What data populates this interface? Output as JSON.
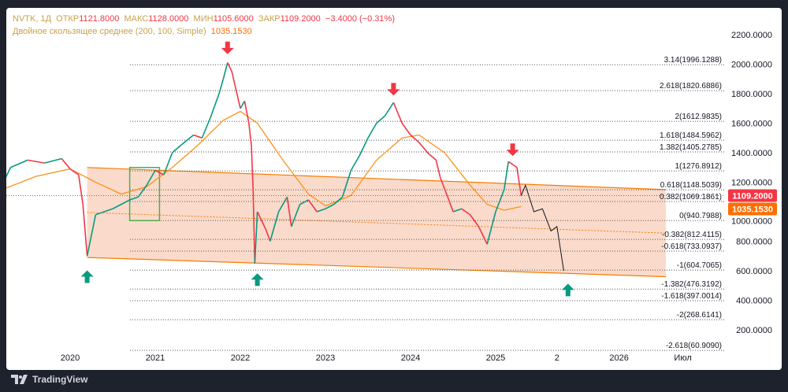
{
  "header": {
    "symbol": "NVTK, 1Д",
    "open_label": "ОТКР",
    "open": "1121.8000",
    "high_label": "МАКС",
    "high": "1128.0000",
    "low_label": "МИН",
    "low": "1105.6000",
    "close_label": "ЗАКР",
    "close": "1109.2000",
    "change": "−3.4000 (−0.31%)",
    "indicator": "Двойное скользящее среднее (200, 100, Simple)",
    "indicator_value": "1035.1530"
  },
  "brand": "TradingView",
  "colors": {
    "up": "#089981",
    "down": "#f23645",
    "ma": "#f7931a",
    "channel": "#f8cdb8",
    "box": "#4caf50"
  },
  "chart_data": {
    "type": "line",
    "ylim": [
      200,
      2200
    ],
    "yticks": [
      "2200.0000",
      "2000.0000",
      "1800.0000",
      "1600.0000",
      "1400.0000",
      "1200.0000",
      "1000.0000",
      "800.0000",
      "600.0000",
      "400.0000",
      "200.0000"
    ],
    "ytick_values": [
      2200,
      2000,
      1800,
      1600,
      1400,
      1200,
      1000,
      800,
      600,
      400,
      200
    ],
    "xticks": [
      {
        "label": "2020",
        "t": 2020
      },
      {
        "label": "2021",
        "t": 2021
      },
      {
        "label": "2022",
        "t": 2022
      },
      {
        "label": "2023",
        "t": 2023
      },
      {
        "label": "2024",
        "t": 2024
      },
      {
        "label": "2025",
        "t": 2025
      },
      {
        "label": "2",
        "t": 2025.72
      },
      {
        "label": "2026",
        "t": 2026.45
      },
      {
        "label": "Июл",
        "t": 2027.2
      }
    ],
    "price_series": [
      [
        2019.2,
        1180
      ],
      [
        2019.3,
        1300
      ],
      [
        2019.5,
        1350
      ],
      [
        2019.7,
        1330
      ],
      [
        2019.9,
        1360
      ],
      [
        2020.0,
        1290
      ],
      [
        2020.1,
        1250
      ],
      [
        2020.15,
        1050
      ],
      [
        2020.2,
        700
      ],
      [
        2020.3,
        980
      ],
      [
        2020.5,
        1020
      ],
      [
        2020.7,
        1080
      ],
      [
        2020.8,
        1100
      ],
      [
        2020.9,
        1180
      ],
      [
        2021.0,
        1280
      ],
      [
        2021.1,
        1250
      ],
      [
        2021.2,
        1400
      ],
      [
        2021.3,
        1450
      ],
      [
        2021.45,
        1520
      ],
      [
        2021.55,
        1500
      ],
      [
        2021.65,
        1640
      ],
      [
        2021.75,
        1800
      ],
      [
        2021.8,
        1900
      ],
      [
        2021.85,
        2010
      ],
      [
        2021.9,
        1950
      ],
      [
        2022.0,
        1700
      ],
      [
        2022.05,
        1750
      ],
      [
        2022.1,
        1600
      ],
      [
        2022.13,
        1450
      ],
      [
        2022.15,
        1150
      ],
      [
        2022.17,
        650
      ],
      [
        2022.2,
        1000
      ],
      [
        2022.3,
        880
      ],
      [
        2022.35,
        800
      ],
      [
        2022.45,
        1000
      ],
      [
        2022.55,
        1100
      ],
      [
        2022.6,
        900
      ],
      [
        2022.7,
        1050
      ],
      [
        2022.8,
        1080
      ],
      [
        2022.9,
        1000
      ],
      [
        2023.0,
        1020
      ],
      [
        2023.1,
        1050
      ],
      [
        2023.2,
        1100
      ],
      [
        2023.3,
        1280
      ],
      [
        2023.4,
        1380
      ],
      [
        2023.5,
        1500
      ],
      [
        2023.6,
        1600
      ],
      [
        2023.7,
        1650
      ],
      [
        2023.8,
        1740
      ],
      [
        2023.9,
        1600
      ],
      [
        2024.0,
        1520
      ],
      [
        2024.1,
        1470
      ],
      [
        2024.2,
        1400
      ],
      [
        2024.3,
        1350
      ],
      [
        2024.35,
        1230
      ],
      [
        2024.45,
        1080
      ],
      [
        2024.5,
        1000
      ],
      [
        2024.6,
        1020
      ],
      [
        2024.7,
        980
      ],
      [
        2024.8,
        900
      ],
      [
        2024.9,
        780
      ],
      [
        2025.0,
        1000
      ],
      [
        2025.1,
        1150
      ],
      [
        2025.15,
        1340
      ],
      [
        2025.25,
        1300
      ],
      [
        2025.3,
        1109
      ]
    ],
    "ma_series": [
      [
        2019.2,
        1150
      ],
      [
        2019.6,
        1240
      ],
      [
        2020.0,
        1290
      ],
      [
        2020.3,
        1200
      ],
      [
        2020.6,
        1120
      ],
      [
        2020.9,
        1170
      ],
      [
        2021.2,
        1300
      ],
      [
        2021.5,
        1450
      ],
      [
        2021.8,
        1620
      ],
      [
        2022.0,
        1680
      ],
      [
        2022.2,
        1600
      ],
      [
        2022.5,
        1350
      ],
      [
        2022.8,
        1120
      ],
      [
        2023.0,
        1040
      ],
      [
        2023.3,
        1110
      ],
      [
        2023.6,
        1350
      ],
      [
        2023.9,
        1500
      ],
      [
        2024.1,
        1520
      ],
      [
        2024.4,
        1400
      ],
      [
        2024.7,
        1180
      ],
      [
        2024.9,
        1050
      ],
      [
        2025.1,
        1010
      ],
      [
        2025.3,
        1035
      ]
    ],
    "projection": [
      [
        2025.3,
        1109
      ],
      [
        2025.35,
        1180
      ],
      [
        2025.45,
        1000
      ],
      [
        2025.55,
        1020
      ],
      [
        2025.65,
        870
      ],
      [
        2025.72,
        900
      ],
      [
        2025.8,
        600
      ]
    ],
    "channel": {
      "upper": [
        [
          2020.2,
          1300
        ],
        [
          2027.0,
          1150
        ]
      ],
      "lower": [
        [
          2020.2,
          690
        ],
        [
          2027.0,
          560
        ]
      ]
    },
    "fib_levels": [
      {
        "label": "3.14(1996.1288)",
        "v": 1996.1288
      },
      {
        "label": "2.618(1820.6886)",
        "v": 1820.6886
      },
      {
        "label": "2(1612.9835)",
        "v": 1612.9835
      },
      {
        "label": "1.618(1484.5962)",
        "v": 1484.5962
      },
      {
        "label": "1.382(1405.2785)",
        "v": 1405.2785
      },
      {
        "label": "1(1276.8912)",
        "v": 1276.8912
      },
      {
        "label": "0.618(1148.5039)",
        "v": 1148.5039
      },
      {
        "label": "0.382(1069.1861)",
        "v": 1069.1861
      },
      {
        "label": "0(940.7988)",
        "v": 940.7988
      },
      {
        "label": "-0.382(812.4115)",
        "v": 812.4115
      },
      {
        "label": "-0.618(733.0937)",
        "v": 733.0937
      },
      {
        "label": "-1(604.7065)",
        "v": 604.7065
      },
      {
        "label": "-1.382(476.3192)",
        "v": 476.3192
      },
      {
        "label": "-1.618(397.0014)",
        "v": 397.0014
      },
      {
        "label": "-2(268.6141)",
        "v": 268.6141
      },
      {
        "label": "-2.618(60.9090)",
        "v": 60.909
      }
    ],
    "arrows": [
      {
        "dir": "down",
        "t": 2021.85,
        "v": 2110
      },
      {
        "dir": "down",
        "t": 2023.8,
        "v": 1830
      },
      {
        "dir": "down",
        "t": 2025.2,
        "v": 1420
      },
      {
        "dir": "up",
        "t": 2020.2,
        "v": 560
      },
      {
        "dir": "up",
        "t": 2022.2,
        "v": 540
      },
      {
        "dir": "up",
        "t": 2025.85,
        "v": 470
      }
    ],
    "box": {
      "t0": 2020.7,
      "t1": 2021.05,
      "v0": 940,
      "v1": 1300
    },
    "last_price": "1109.2000",
    "last_price_value": 1109.2,
    "ma_value": "1035.1530",
    "ma_value_num": 1035.153
  }
}
